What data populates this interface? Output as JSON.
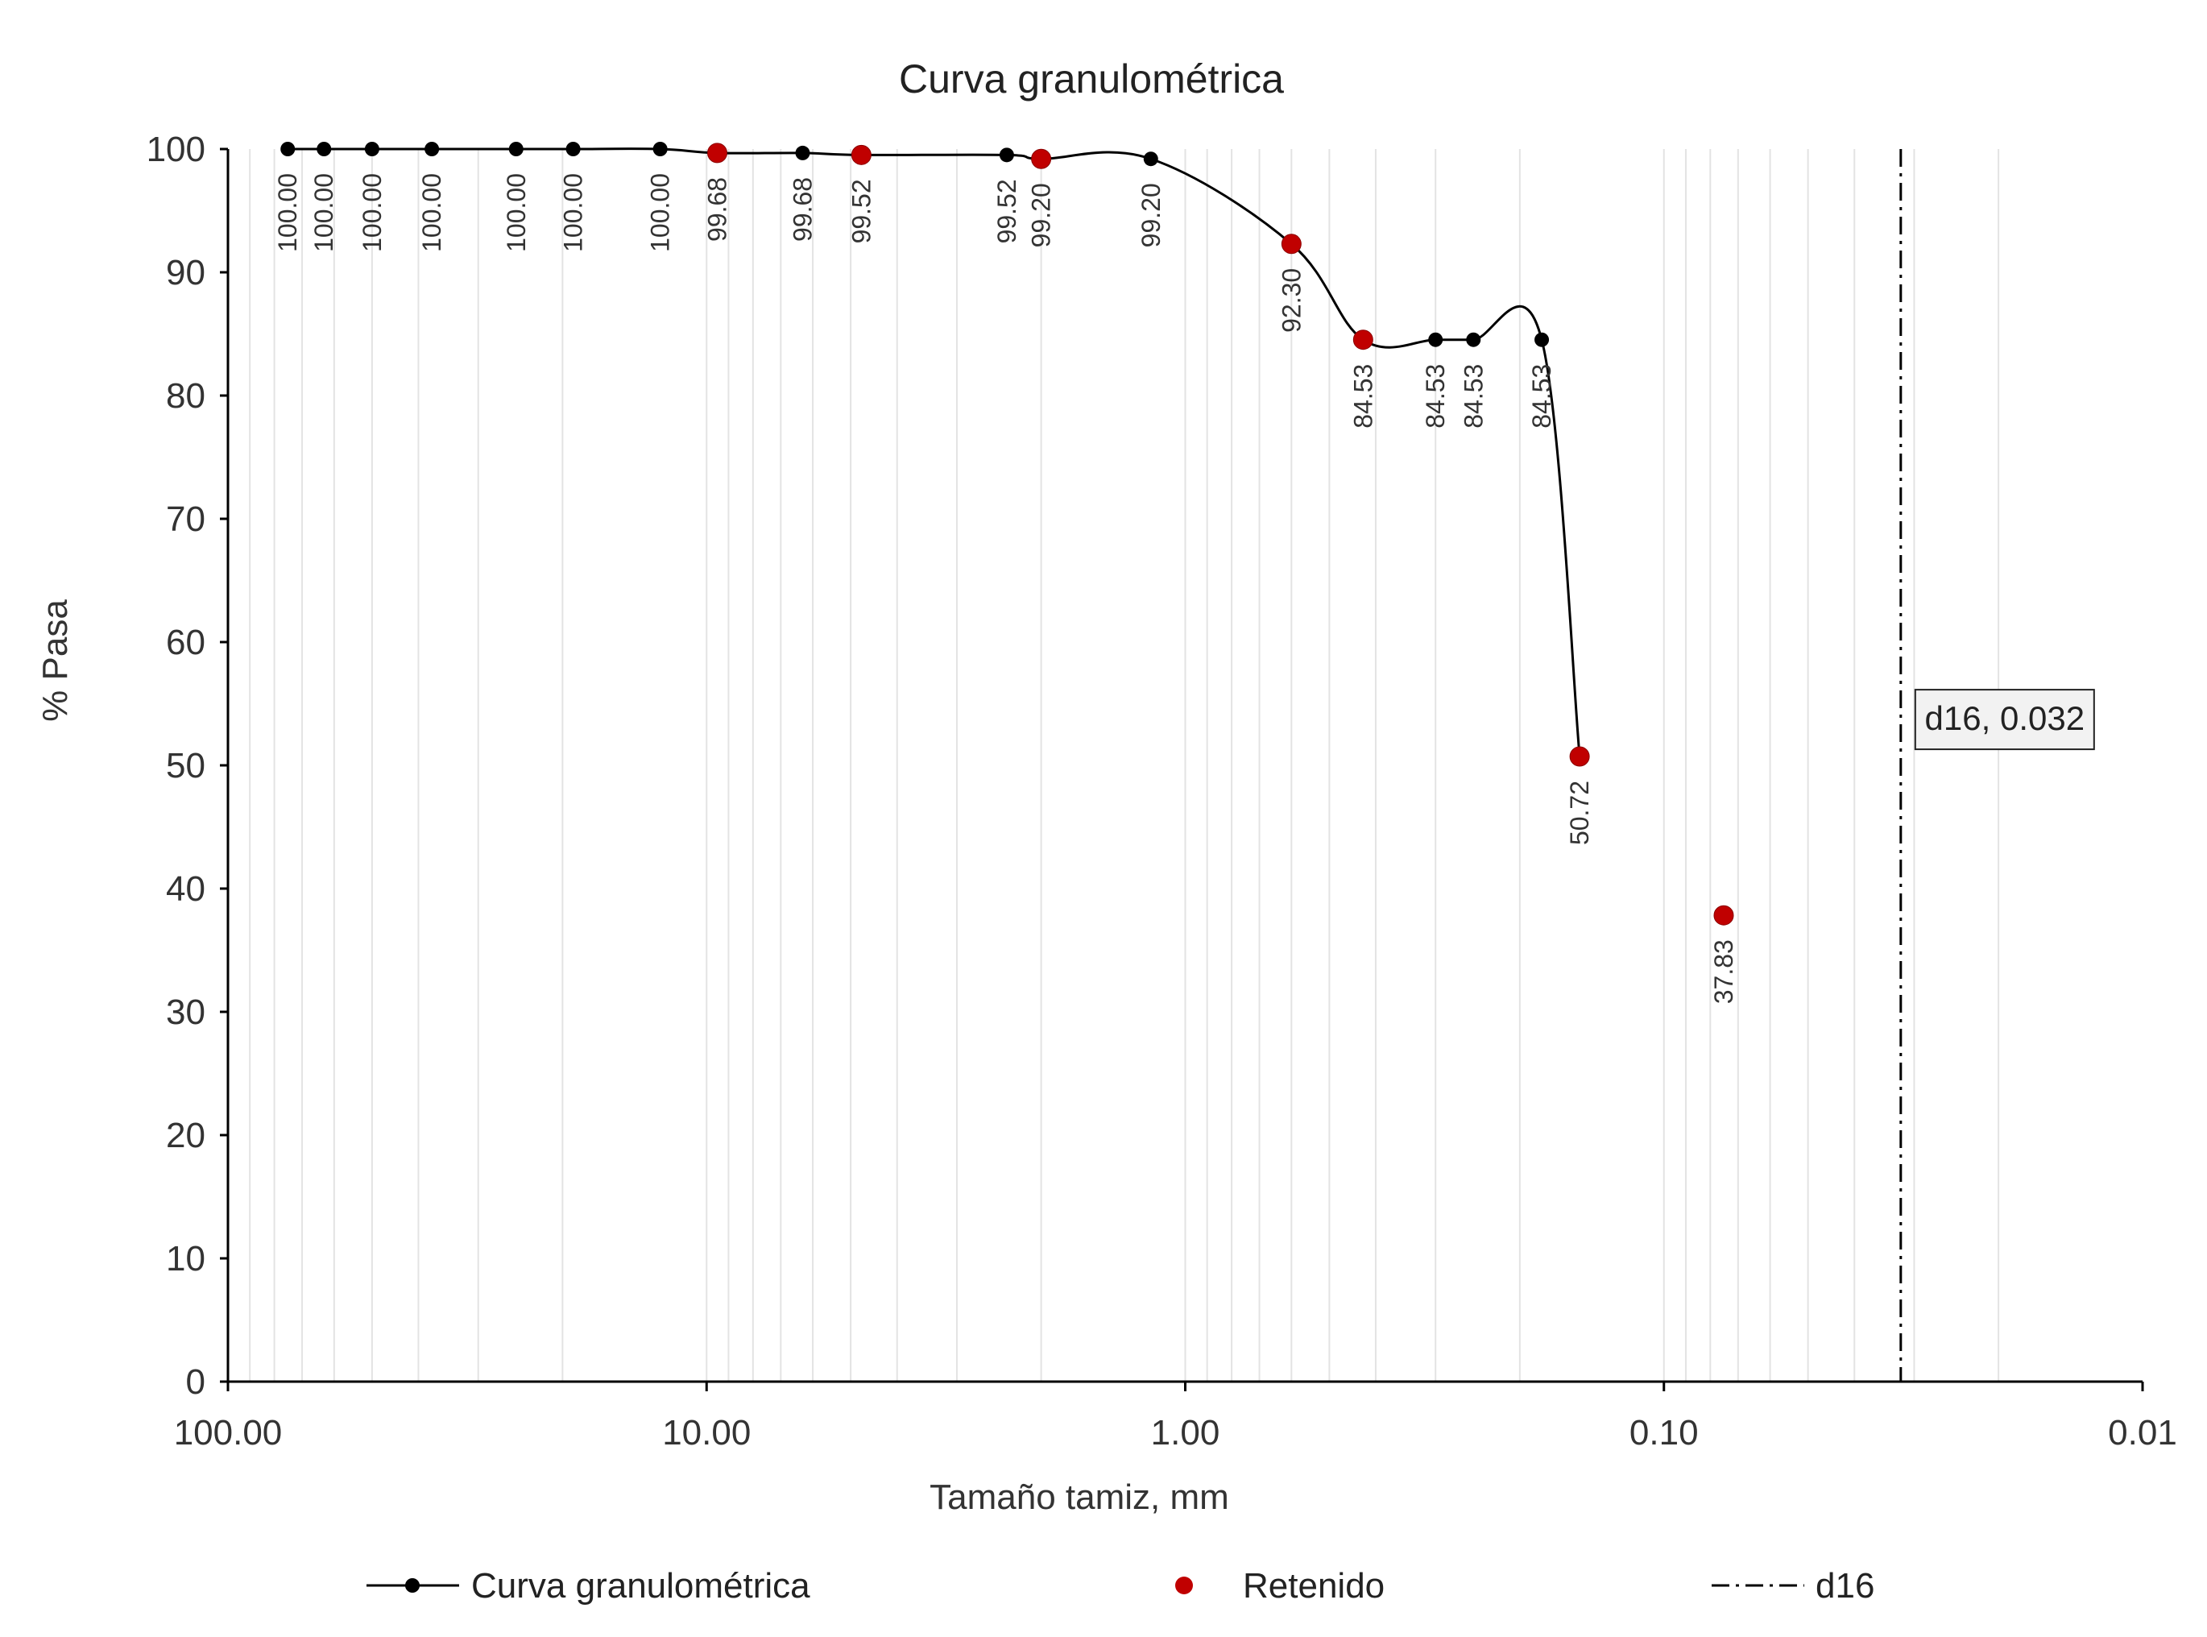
{
  "chart_data": {
    "type": "scatter",
    "title": "Curva granulométrica",
    "xlabel": "Tamaño tamiz, mm",
    "ylabel": "% Pasa",
    "x_scale": "log",
    "x_reversed": true,
    "xlim": [
      100,
      0.01
    ],
    "ylim": [
      0,
      100
    ],
    "x_ticks": [
      100,
      10,
      1,
      0.1,
      0.01
    ],
    "x_tick_labels": [
      "100.00",
      "10.00",
      "1.00",
      "0.10",
      "0.01"
    ],
    "y_ticks": [
      0,
      10,
      20,
      30,
      40,
      50,
      60,
      70,
      80,
      90,
      100
    ],
    "y_tick_labels": [
      "0",
      "10",
      "20",
      "30",
      "40",
      "50",
      "60",
      "70",
      "80",
      "90",
      "100"
    ],
    "grid": "vertical minor log gridlines",
    "legend_position": "bottom",
    "series": [
      {
        "name": "Curva granulométrica",
        "style": "smooth line with markers",
        "color": "#000000",
        "x": [
          75,
          63,
          50,
          37.5,
          25,
          19,
          12.5,
          9.5,
          6.3,
          4.75,
          2.36,
          2.0,
          1.18,
          0.6,
          0.425,
          0.3,
          0.25,
          0.18,
          0.15
        ],
        "y": [
          100.0,
          100.0,
          100.0,
          100.0,
          100.0,
          100.0,
          100.0,
          99.68,
          99.68,
          99.52,
          99.52,
          99.2,
          99.2,
          92.3,
          84.53,
          84.53,
          84.53,
          84.53,
          50.72
        ],
        "labels": [
          "100.00",
          "100.00",
          "100.00",
          "100.00",
          "100.00",
          "100.00",
          "100.00",
          "99.68",
          "99.68",
          "99.52",
          "99.52",
          "99.20",
          "99.20",
          "92.30",
          "84.53",
          "84.53",
          "84.53",
          "84.53",
          "50.72"
        ]
      },
      {
        "name": "Retenido",
        "style": "markers",
        "color": "#c00000",
        "x": [
          9.5,
          4.75,
          2.0,
          0.6,
          0.425,
          0.15,
          0.075
        ],
        "y": [
          99.68,
          99.52,
          99.2,
          92.3,
          84.53,
          50.72,
          37.83
        ],
        "labels": [
          "37.83"
        ]
      },
      {
        "name": "d16",
        "style": "dash-dot vertical line",
        "color": "#000000",
        "x": [
          0.032,
          0.032
        ],
        "y": [
          0,
          100
        ]
      }
    ],
    "annotations": [
      {
        "text": "d16, 0.032",
        "x": 0.032,
        "y": 53
      }
    ]
  }
}
